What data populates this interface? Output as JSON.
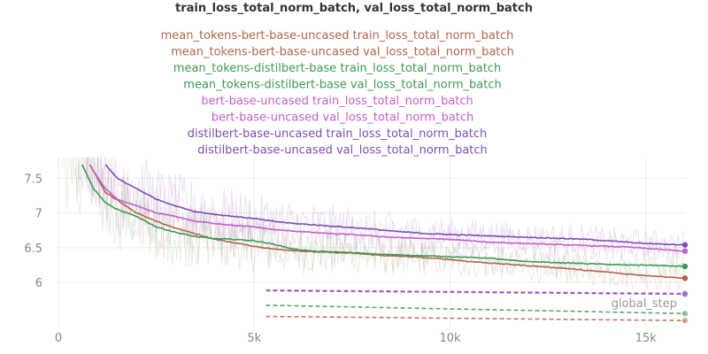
{
  "chart_data": {
    "type": "line",
    "title": "train_loss_total_norm_batch, val_loss_total_norm_batch",
    "xlabel": "global_step",
    "ylabel": "",
    "xlim": [
      0,
      16000
    ],
    "ylim": [
      5.35,
      7.8
    ],
    "xticks": [
      0,
      5000,
      10000,
      15000
    ],
    "xtick_labels": [
      "0",
      "5k",
      "10k",
      "15k"
    ],
    "yticks": [
      6,
      6.5,
      7,
      7.5
    ],
    "ytick_labels": [
      "6",
      "6.5",
      "7",
      "7.5"
    ],
    "grid": true,
    "legend_placement": "top-center",
    "series": [
      {
        "name": "mean_tokens-bert-base-uncased train_loss_total_norm_batch",
        "color": "#b0664a",
        "dashed": false,
        "x": [
          800,
          1200,
          1600,
          2000,
          2500,
          3000,
          3500,
          4000,
          4500,
          5000,
          5500,
          6000,
          6500,
          7000,
          7500,
          8000,
          8500,
          9000,
          9500,
          10000,
          10500,
          11000,
          11500,
          12000,
          12500,
          13000,
          13500,
          14000,
          14500,
          15000,
          15500,
          16000
        ],
        "y": [
          7.7,
          7.3,
          7.15,
          7.0,
          6.88,
          6.78,
          6.7,
          6.62,
          6.57,
          6.52,
          6.48,
          6.46,
          6.44,
          6.43,
          6.42,
          6.4,
          6.38,
          6.37,
          6.35,
          6.33,
          6.3,
          6.28,
          6.26,
          6.24,
          6.22,
          6.2,
          6.17,
          6.15,
          6.12,
          6.1,
          6.08,
          6.06
        ]
      },
      {
        "name": "mean_tokens-bert-base-uncased val_loss_total_norm_batch",
        "color": "#b0664a",
        "dashed": true,
        "x": [
          5300,
          16000
        ],
        "y": [
          5.51,
          5.45
        ]
      },
      {
        "name": "mean_tokens-distilbert-base train_loss_total_norm_batch",
        "color": "#3d9953",
        "dashed": false,
        "x": [
          600,
          900,
          1200,
          1500,
          2000,
          2500,
          3000,
          3500,
          4000,
          4500,
          5000,
          5500,
          6000,
          6500,
          7000,
          7500,
          8000,
          8500,
          9000,
          9500,
          10000,
          10500,
          11000,
          11500,
          12000,
          12500,
          13000,
          13500,
          14000,
          14500,
          15000,
          15500,
          16000
        ],
        "y": [
          7.7,
          7.35,
          7.15,
          7.05,
          6.95,
          6.8,
          6.72,
          6.66,
          6.63,
          6.62,
          6.6,
          6.55,
          6.48,
          6.45,
          6.44,
          6.43,
          6.41,
          6.4,
          6.39,
          6.38,
          6.37,
          6.36,
          6.35,
          6.32,
          6.3,
          6.29,
          6.28,
          6.27,
          6.26,
          6.25,
          6.25,
          6.24,
          6.23
        ]
      },
      {
        "name": "mean_tokens-distilbert-base val_loss_total_norm_batch",
        "color": "#3d9953",
        "dashed": true,
        "x": [
          5300,
          16000
        ],
        "y": [
          5.67,
          5.55
        ]
      },
      {
        "name": "bert-base-uncased train_loss_total_norm_batch",
        "color": "#c25fc9",
        "dashed": false,
        "x": [
          900,
          1200,
          1500,
          2000,
          2500,
          3000,
          3500,
          4000,
          4500,
          5000,
          5500,
          6000,
          6500,
          7000,
          7500,
          8000,
          8500,
          9000,
          9500,
          10000,
          10500,
          11000,
          11500,
          12000,
          12500,
          13000,
          13500,
          14000,
          14500,
          15000,
          15500,
          16000
        ],
        "y": [
          7.6,
          7.35,
          7.2,
          7.1,
          7.0,
          6.95,
          6.88,
          6.85,
          6.82,
          6.8,
          6.76,
          6.74,
          6.72,
          6.7,
          6.69,
          6.67,
          6.65,
          6.64,
          6.63,
          6.62,
          6.6,
          6.58,
          6.57,
          6.56,
          6.55,
          6.54,
          6.53,
          6.52,
          6.51,
          6.49,
          6.47,
          6.45
        ]
      },
      {
        "name": "bert-base-uncased val_loss_total_norm_batch",
        "color": "#c25fc9",
        "dashed": true,
        "x": [
          5300,
          16000
        ],
        "y": [
          5.89,
          5.84
        ]
      },
      {
        "name": "distilbert-base-uncased train_loss_total_norm_batch",
        "color": "#7c4fb3",
        "dashed": false,
        "x": [
          1200,
          1500,
          2000,
          2500,
          3000,
          3500,
          4000,
          4500,
          5000,
          5500,
          6000,
          6500,
          7000,
          7500,
          8000,
          8500,
          9000,
          9500,
          10000,
          10500,
          11000,
          11500,
          12000,
          12500,
          13000,
          13500,
          14000,
          14500,
          15000,
          15500,
          16000
        ],
        "y": [
          7.7,
          7.5,
          7.35,
          7.2,
          7.1,
          7.02,
          6.98,
          6.95,
          6.92,
          6.88,
          6.85,
          6.83,
          6.81,
          6.79,
          6.77,
          6.74,
          6.72,
          6.7,
          6.69,
          6.68,
          6.67,
          6.66,
          6.65,
          6.64,
          6.63,
          6.62,
          6.6,
          6.58,
          6.56,
          6.55,
          6.54
        ]
      },
      {
        "name": "distilbert-base-uncased val_loss_total_norm_batch",
        "color": "#7c4fb3",
        "dashed": true,
        "x": [
          5300,
          16000
        ],
        "y": [
          5.88,
          5.83
        ]
      }
    ]
  }
}
